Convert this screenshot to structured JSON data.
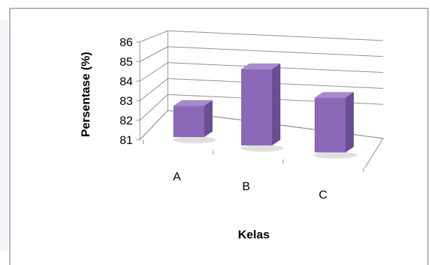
{
  "chart_data": {
    "type": "bar",
    "title": "",
    "xlabel": "Kelas",
    "ylabel": "Persentase (%)",
    "categories": [
      "A",
      "B",
      "C"
    ],
    "values": [
      82.6,
      84.9,
      83.8
    ],
    "ylim": [
      81,
      86
    ],
    "yticks": [
      "81",
      "82",
      "83",
      "84",
      "85",
      "86"
    ],
    "grid": true,
    "style": "3d-column",
    "colors": {
      "bar_front": "#8B68B7",
      "bar_side": "#6A4E94",
      "bar_top": "#A78ACB",
      "grid": "#8C8C8C"
    }
  }
}
